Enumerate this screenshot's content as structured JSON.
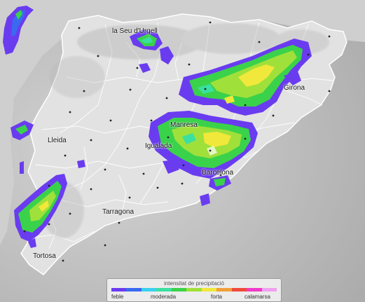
{
  "cities": [
    "la Seu d'Urgell",
    "Girona",
    "Manresa",
    "Lleida",
    "Igualada",
    "Barcelona",
    "Tarragona",
    "Tortosa"
  ],
  "legend": {
    "title": "intensitat de precipitació",
    "labels": [
      "feble",
      "moderada",
      "forta",
      "calamarsa"
    ],
    "colors": [
      "#6a3cf0",
      "#3a6af0",
      "#3ad0f0",
      "#3ae0a0",
      "#3ad24a",
      "#a0e03a",
      "#f0e83a",
      "#f0a03a",
      "#f04a3a",
      "#f03ac8",
      "#f0a0f0"
    ]
  },
  "colors": {
    "sea": "#bdbdbd",
    "land": "#dcdcdc",
    "border": "#ffffff"
  }
}
